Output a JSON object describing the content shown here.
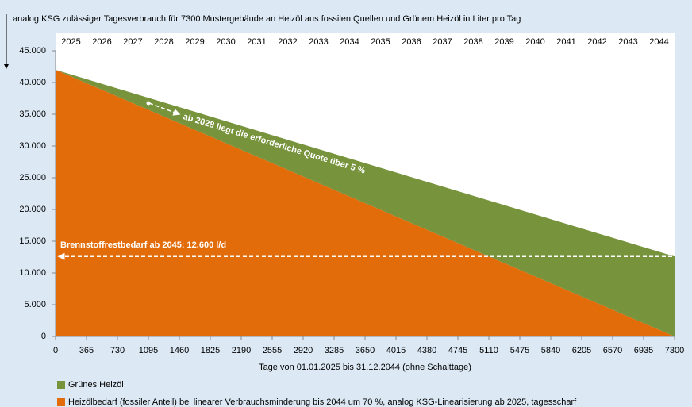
{
  "chart_data": {
    "type": "stacked-area",
    "title": "analog KSG zulässiger Tagesverbrauch für 7300 Mustergebäude an Heizöl aus fossilen Quellen und Grünem Heizöl in Liter pro Tag",
    "x_label": "Tage von 01.01.2025 bis 31.12.2044  (ohne Schalttage)",
    "top_categories": [
      "2025",
      "2026",
      "2027",
      "2028",
      "2029",
      "2030",
      "2031",
      "2032",
      "2033",
      "2034",
      "2035",
      "2036",
      "2037",
      "2038",
      "2039",
      "2040",
      "2041",
      "2042",
      "2043",
      "2044"
    ],
    "x": [
      0,
      7300
    ],
    "series": [
      {
        "name": "Heizölbedarf (fossiler Anteil) bei linearer Verbrauchsminderung bis 2044 um 70 %, analog KSG-Linearisierung ab 2025, tagesscharf",
        "color": "#e36c0a",
        "values": [
          42000,
          0
        ]
      },
      {
        "name": "Grünes Heizöl",
        "color": "#77933c",
        "values": [
          0,
          12600
        ]
      }
    ],
    "xlim": [
      0,
      7300
    ],
    "xticks": [
      0,
      365,
      730,
      1095,
      1460,
      1825,
      2190,
      2555,
      2920,
      3285,
      3650,
      4015,
      4380,
      4745,
      5110,
      5475,
      5840,
      6205,
      6570,
      6935,
      7300
    ],
    "ylim": [
      0,
      45000
    ],
    "yticks": [
      0,
      {
        "value": 5000,
        "label": "5.000"
      },
      {
        "value": 10000,
        "label": "10.000"
      },
      {
        "value": 15000,
        "label": "15.000"
      },
      {
        "value": 20000,
        "label": "20.000"
      },
      {
        "value": 25000,
        "label": "25.000"
      },
      {
        "value": 30000,
        "label": "30.000"
      },
      {
        "value": 35000,
        "label": "35.000"
      },
      {
        "value": 40000,
        "label": "40.000"
      },
      {
        "value": 45000,
        "label": "45.000"
      }
    ],
    "annotations": [
      "ab 2028 liegt die erforderliche Quote über 5 %",
      "Brennstoffrestbedarf ab 2045: 12.600 l/d"
    ]
  }
}
